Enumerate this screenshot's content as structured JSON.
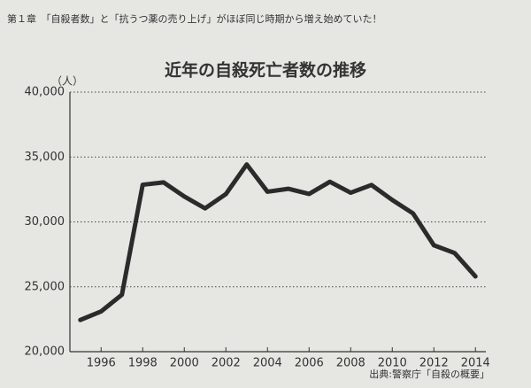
{
  "header": "第１章　「自殺者数」と「抗うつ薬の売り上げ」がほぼ同じ時期から増え始めていた！",
  "chart_data": {
    "type": "line",
    "title": "近年の自殺死亡者数の推移",
    "y_unit": "（人）",
    "source": "出典:警察庁「自殺の概要」",
    "x": [
      1995,
      1996,
      1997,
      1998,
      1999,
      2000,
      2001,
      2002,
      2003,
      2004,
      2005,
      2006,
      2007,
      2008,
      2009,
      2010,
      2011,
      2012,
      2013,
      2014
    ],
    "series": [
      {
        "name": "自殺死亡者数",
        "color": "#2b2b2b",
        "values": [
          22445,
          23104,
          24391,
          32863,
          33048,
          31957,
          31042,
          32143,
          34427,
          32325,
          32552,
          32155,
          33093,
          32249,
          32845,
          31690,
          30651,
          28200,
          27600,
          25800
        ]
      }
    ],
    "xlim": [
      1994.5,
      2014.5
    ],
    "xticks": [
      1996,
      1998,
      2000,
      2002,
      2004,
      2006,
      2008,
      2010,
      2012,
      2014
    ],
    "ylim": [
      20000,
      40000
    ],
    "yticks": [
      {
        "value": 20000,
        "label": "20,000"
      },
      {
        "value": 25000,
        "label": "25,000"
      },
      {
        "value": 30000,
        "label": "30,000"
      },
      {
        "value": 35000,
        "label": "35,000"
      },
      {
        "value": 40000,
        "label": "40,000"
      }
    ],
    "grid": true
  }
}
